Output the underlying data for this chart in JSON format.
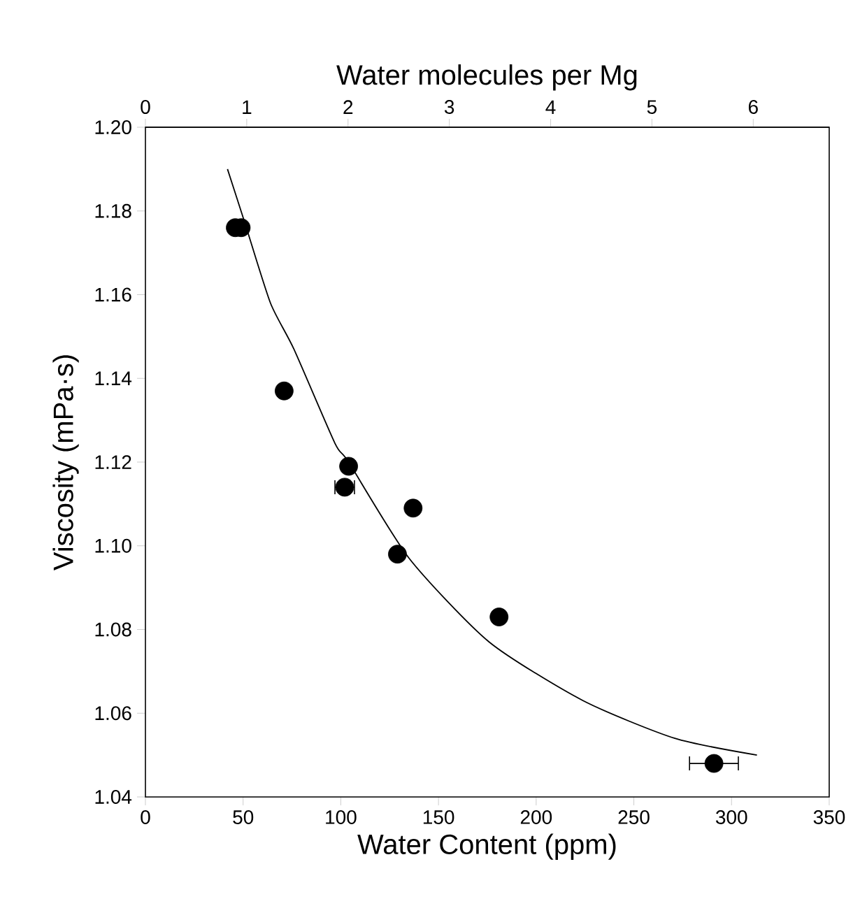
{
  "chart_data": {
    "type": "scatter",
    "xlabel": "Water Content (ppm)",
    "ylabel": "Viscosity (mPa·s)",
    "x2label": "Water molecules per Mg",
    "xlim": [
      0,
      350
    ],
    "xticks": [
      0,
      50,
      100,
      150,
      200,
      250,
      300,
      350
    ],
    "ylim": [
      1.04,
      1.2
    ],
    "yticks": [
      1.04,
      1.06,
      1.08,
      {
        "value": 1.1,
        "label": "1.10"
      },
      1.12,
      1.14,
      1.16,
      1.18,
      {
        "value": 1.2,
        "label": "1.20"
      }
    ],
    "x2lim": [
      0,
      6.75
    ],
    "x2ticks": [
      0,
      1,
      2,
      3,
      4,
      5,
      6
    ],
    "series": [
      {
        "marker": "circle",
        "color": "#000000",
        "x": [
          46,
          49,
          71,
          104,
          102,
          137,
          129,
          181,
          291
        ],
        "values": [
          1.176,
          1.176,
          1.137,
          1.119,
          1.114,
          1.109,
          1.098,
          1.083,
          1.048
        ],
        "xerrors": [
          null,
          null,
          null,
          null,
          5,
          null,
          null,
          null,
          12.5
        ]
      },
      {
        "type": "line",
        "marker": "none",
        "line_style": "solid",
        "color": "#000000",
        "x": [
          42,
          51,
          64,
          76,
          97,
          104,
          135,
          176,
          224,
          271,
          313
        ],
        "values": [
          1.19,
          1.177,
          1.158,
          1.147,
          1.1245,
          1.12,
          1.097,
          1.077,
          1.063,
          1.054,
          1.05
        ]
      }
    ]
  }
}
